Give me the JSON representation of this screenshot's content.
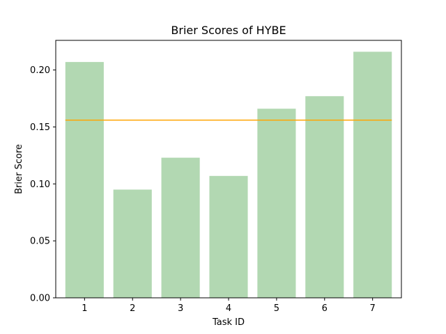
{
  "chart_data": {
    "type": "bar",
    "title": "Brier Scores of HYBE",
    "xlabel": "Task ID",
    "ylabel": "Brier Score",
    "categories": [
      "1",
      "2",
      "3",
      "4",
      "5",
      "6",
      "7"
    ],
    "values": [
      0.207,
      0.095,
      0.123,
      0.107,
      0.166,
      0.177,
      0.216
    ],
    "reference_line": 0.156,
    "ylim": [
      0,
      0.226
    ],
    "yticks": [
      "0.00",
      "0.05",
      "0.10",
      "0.15",
      "0.20"
    ],
    "grid": false,
    "bar_color": "#b2d8b2",
    "line_color": "#ffa500"
  }
}
